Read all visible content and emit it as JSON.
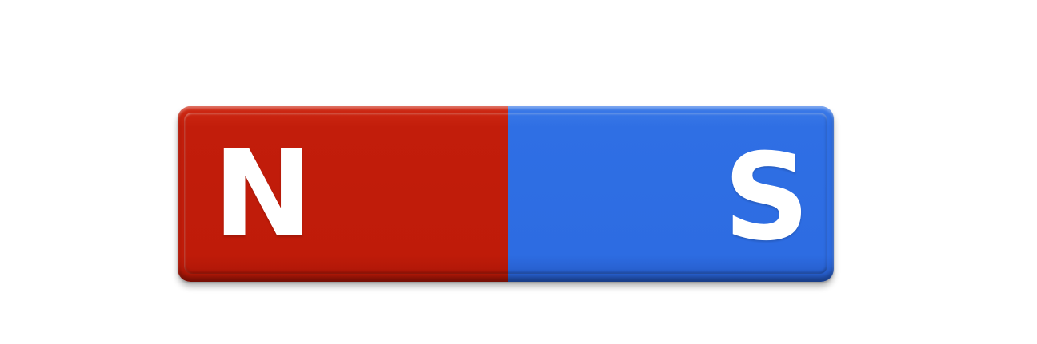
{
  "magnet": {
    "north": {
      "label": "N",
      "color": "#c21d0b"
    },
    "south": {
      "label": "S",
      "color": "#2d6ce2"
    },
    "label_color": "#ffffff",
    "background_color": "#ffffff"
  }
}
